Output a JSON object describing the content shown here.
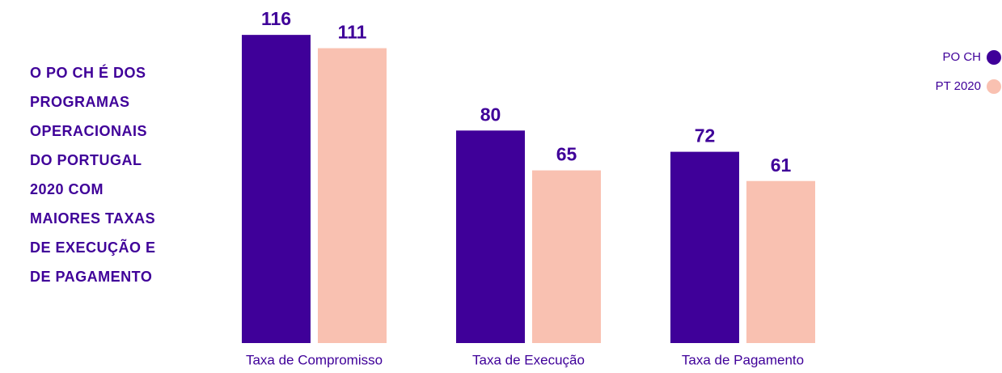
{
  "chart_data": {
    "type": "bar",
    "title": "O PO CH É DOS PROGRAMAS OPERACIONAIS DO PORTUGAL 2020 COM MAIORES TAXAS DE EXECUÇÃO E DE PAGAMENTO",
    "categories": [
      "Taxa de Compromisso",
      "Taxa de Execução",
      "Taxa de Pagamento"
    ],
    "series": [
      {
        "name": "PO CH",
        "color": "#3f0099",
        "values": [
          116,
          80,
          72
        ]
      },
      {
        "name": "PT 2020",
        "color": "#f9c1b1",
        "values": [
          111,
          65,
          61
        ]
      }
    ],
    "ylim": [
      0,
      120
    ],
    "legend": "upper right"
  }
}
